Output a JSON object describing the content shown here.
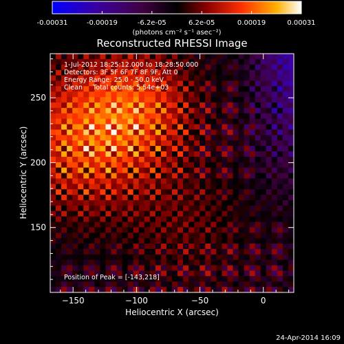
{
  "chart_data": {
    "type": "heatmap",
    "title": "Reconstructed RHESSI Image",
    "xlabel": "Heliocentric X (arcsec)",
    "ylabel": "Heliocentric Y (arcsec)",
    "xlim": [
      -168,
      24
    ],
    "ylim": [
      100,
      284
    ],
    "x_ticks": [
      -150,
      -100,
      -50,
      0
    ],
    "y_ticks": [
      150,
      200,
      250
    ],
    "colorbar": {
      "ticks": [
        "-0.00031",
        "-0.00019",
        "-6.2e-05",
        "6.2e-05",
        "0.00019",
        "0.00031"
      ],
      "range": [
        -0.00031,
        0.00031
      ],
      "unit_label": "(photons cm⁻² s⁻¹ asec⁻²)"
    },
    "info_lines": [
      "1-Jul-2012 18:25:12.000 to 18:28:50.000",
      "Detectors: 3F 5F 6F 7F 8F 9F, Att 0",
      "Energy Range: 25.0 - 50.0 keV",
      "Clean     Total counts: 5.54e+03"
    ],
    "peak_label": "Position of Peak = [-143,218]",
    "peak": [
      -143,
      218
    ],
    "timestamp": "24-Apr-2014 16:09"
  }
}
